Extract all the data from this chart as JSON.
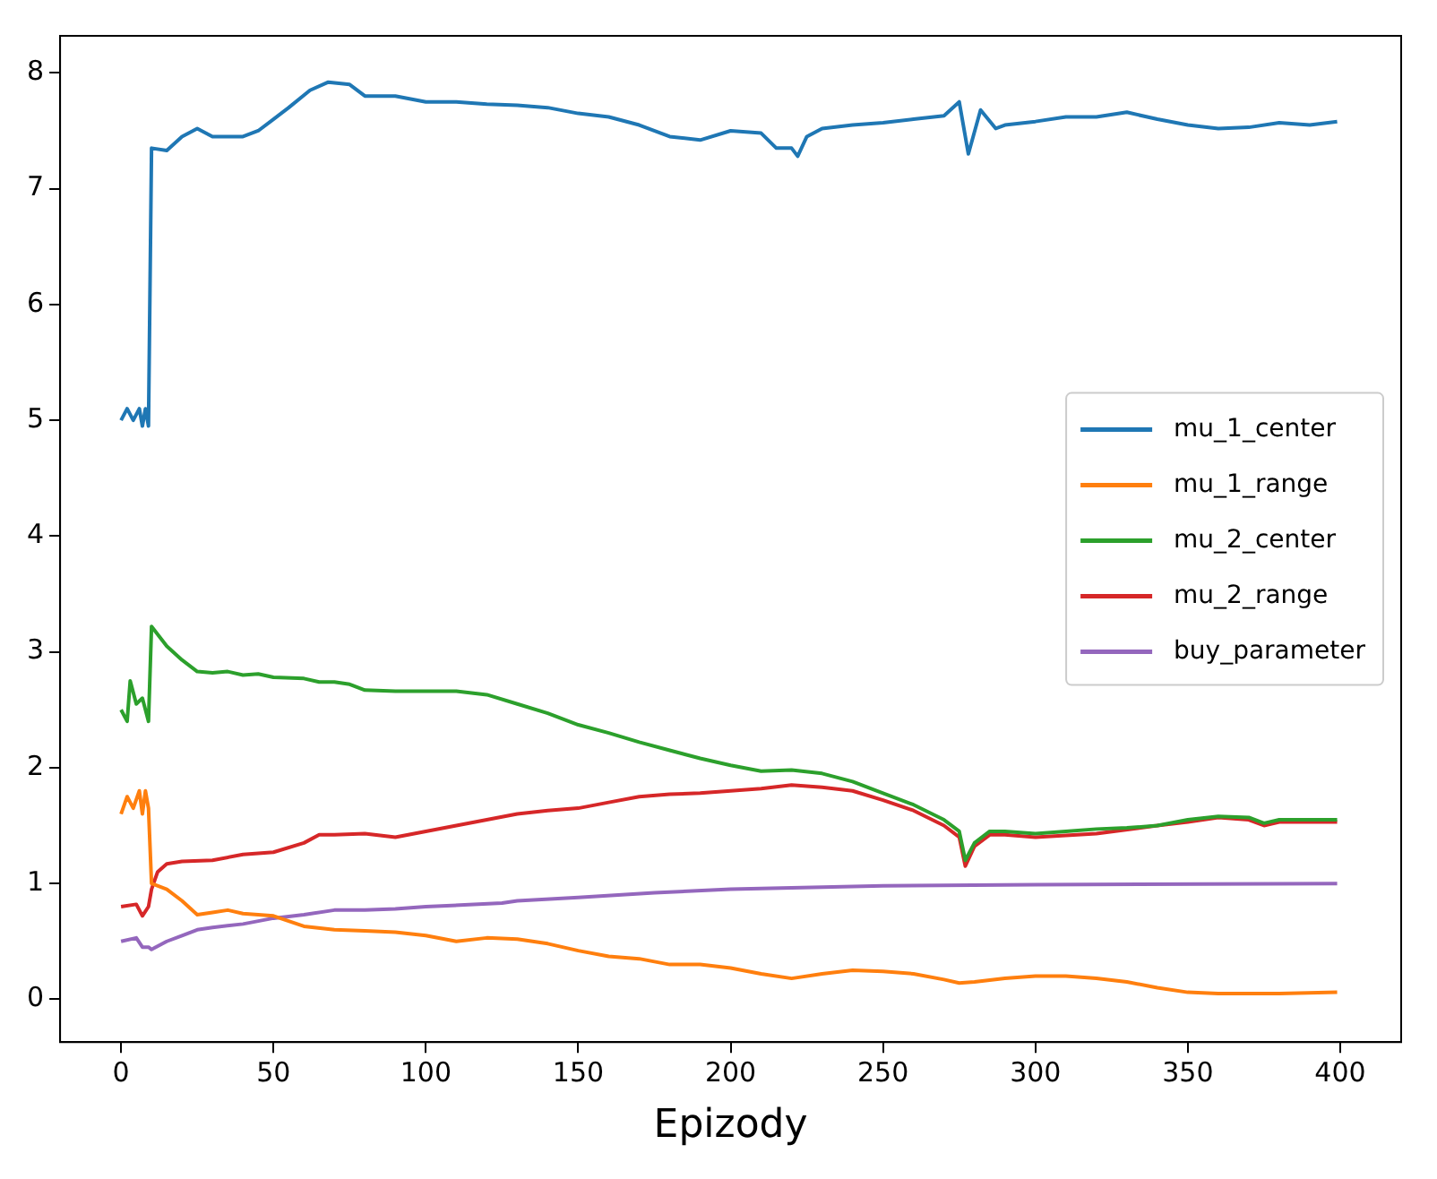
{
  "chart_data": {
    "type": "line",
    "xlabel": "Epizody",
    "xlim": [
      -20,
      420
    ],
    "ylim": [
      -0.37,
      8.32
    ],
    "xticks": [
      0,
      50,
      100,
      150,
      200,
      250,
      300,
      350,
      400
    ],
    "yticks": [
      0,
      1,
      2,
      3,
      4,
      5,
      6,
      7,
      8
    ],
    "grid": false,
    "legend": "right",
    "marker": "none",
    "line_style": "solid",
    "series": [
      {
        "name": "mu_1_center",
        "color": "#1f77b4",
        "x": [
          0,
          2,
          4,
          6,
          7,
          8,
          9,
          10,
          15,
          20,
          25,
          30,
          35,
          40,
          45,
          50,
          55,
          62,
          68,
          75,
          80,
          90,
          100,
          110,
          120,
          130,
          140,
          150,
          160,
          170,
          180,
          190,
          200,
          210,
          215,
          220,
          222,
          225,
          230,
          240,
          250,
          260,
          270,
          275,
          278,
          282,
          287,
          290,
          300,
          310,
          320,
          330,
          340,
          350,
          360,
          370,
          380,
          390,
          399
        ],
        "values": [
          5.0,
          5.1,
          5.0,
          5.1,
          4.95,
          5.1,
          4.95,
          7.35,
          7.33,
          7.45,
          7.52,
          7.45,
          7.45,
          7.45,
          7.5,
          7.6,
          7.7,
          7.85,
          7.92,
          7.9,
          7.8,
          7.8,
          7.75,
          7.75,
          7.73,
          7.72,
          7.7,
          7.65,
          7.62,
          7.55,
          7.45,
          7.42,
          7.5,
          7.48,
          7.35,
          7.35,
          7.28,
          7.45,
          7.52,
          7.55,
          7.57,
          7.6,
          7.63,
          7.75,
          7.3,
          7.68,
          7.52,
          7.55,
          7.58,
          7.62,
          7.62,
          7.66,
          7.6,
          7.55,
          7.52,
          7.53,
          7.57,
          7.55,
          7.58
        ]
      },
      {
        "name": "mu_1_range",
        "color": "#ff7f0e",
        "x": [
          0,
          2,
          4,
          6,
          7,
          8,
          9,
          10,
          15,
          20,
          25,
          30,
          35,
          40,
          50,
          60,
          70,
          80,
          90,
          100,
          110,
          120,
          130,
          140,
          150,
          160,
          170,
          180,
          190,
          200,
          210,
          220,
          230,
          240,
          250,
          260,
          270,
          275,
          280,
          290,
          300,
          310,
          320,
          330,
          340,
          350,
          360,
          380,
          399
        ],
        "values": [
          1.6,
          1.75,
          1.65,
          1.8,
          1.6,
          1.8,
          1.65,
          1.0,
          0.95,
          0.85,
          0.73,
          0.75,
          0.77,
          0.74,
          0.72,
          0.63,
          0.6,
          0.59,
          0.58,
          0.55,
          0.5,
          0.53,
          0.52,
          0.48,
          0.42,
          0.37,
          0.35,
          0.3,
          0.3,
          0.27,
          0.22,
          0.18,
          0.22,
          0.25,
          0.24,
          0.22,
          0.17,
          0.14,
          0.15,
          0.18,
          0.2,
          0.2,
          0.18,
          0.15,
          0.1,
          0.06,
          0.05,
          0.05,
          0.06
        ]
      },
      {
        "name": "mu_2_center",
        "color": "#2ca02c",
        "x": [
          0,
          2,
          3,
          5,
          7,
          9,
          10,
          15,
          20,
          25,
          30,
          35,
          40,
          45,
          50,
          60,
          65,
          70,
          75,
          80,
          90,
          100,
          110,
          120,
          130,
          140,
          150,
          160,
          170,
          180,
          190,
          200,
          210,
          220,
          230,
          240,
          250,
          260,
          270,
          275,
          277,
          280,
          285,
          290,
          300,
          310,
          320,
          330,
          340,
          350,
          360,
          370,
          375,
          380,
          399
        ],
        "values": [
          2.5,
          2.4,
          2.75,
          2.55,
          2.6,
          2.4,
          3.22,
          3.05,
          2.93,
          2.83,
          2.82,
          2.83,
          2.8,
          2.81,
          2.78,
          2.77,
          2.74,
          2.74,
          2.72,
          2.67,
          2.66,
          2.66,
          2.66,
          2.63,
          2.55,
          2.47,
          2.37,
          2.3,
          2.22,
          2.15,
          2.08,
          2.02,
          1.97,
          1.98,
          1.95,
          1.88,
          1.78,
          1.68,
          1.55,
          1.45,
          1.2,
          1.35,
          1.45,
          1.45,
          1.43,
          1.45,
          1.47,
          1.48,
          1.5,
          1.55,
          1.58,
          1.57,
          1.52,
          1.55,
          1.55
        ]
      },
      {
        "name": "mu_2_range",
        "color": "#d62728",
        "x": [
          0,
          5,
          7,
          9,
          10,
          12,
          15,
          20,
          30,
          40,
          50,
          60,
          65,
          70,
          80,
          90,
          100,
          110,
          120,
          130,
          140,
          150,
          160,
          170,
          180,
          190,
          200,
          210,
          220,
          230,
          240,
          250,
          260,
          270,
          275,
          277,
          280,
          285,
          290,
          300,
          320,
          340,
          350,
          360,
          370,
          375,
          380,
          399
        ],
        "values": [
          0.8,
          0.82,
          0.72,
          0.8,
          0.95,
          1.1,
          1.17,
          1.19,
          1.2,
          1.25,
          1.27,
          1.35,
          1.42,
          1.42,
          1.43,
          1.4,
          1.45,
          1.5,
          1.55,
          1.6,
          1.63,
          1.65,
          1.7,
          1.75,
          1.77,
          1.78,
          1.8,
          1.82,
          1.85,
          1.83,
          1.8,
          1.72,
          1.63,
          1.5,
          1.4,
          1.15,
          1.32,
          1.42,
          1.42,
          1.4,
          1.43,
          1.5,
          1.53,
          1.57,
          1.55,
          1.5,
          1.53,
          1.53
        ]
      },
      {
        "name": "buy_parameter",
        "color": "#9467bd",
        "x": [
          0,
          5,
          7,
          9,
          10,
          15,
          20,
          25,
          30,
          40,
          50,
          60,
          70,
          80,
          90,
          100,
          125,
          130,
          150,
          175,
          200,
          250,
          300,
          399
        ],
        "values": [
          0.5,
          0.53,
          0.45,
          0.45,
          0.43,
          0.5,
          0.55,
          0.6,
          0.62,
          0.65,
          0.7,
          0.73,
          0.77,
          0.77,
          0.78,
          0.8,
          0.83,
          0.85,
          0.88,
          0.92,
          0.95,
          0.98,
          0.99,
          1.0
        ]
      }
    ]
  }
}
